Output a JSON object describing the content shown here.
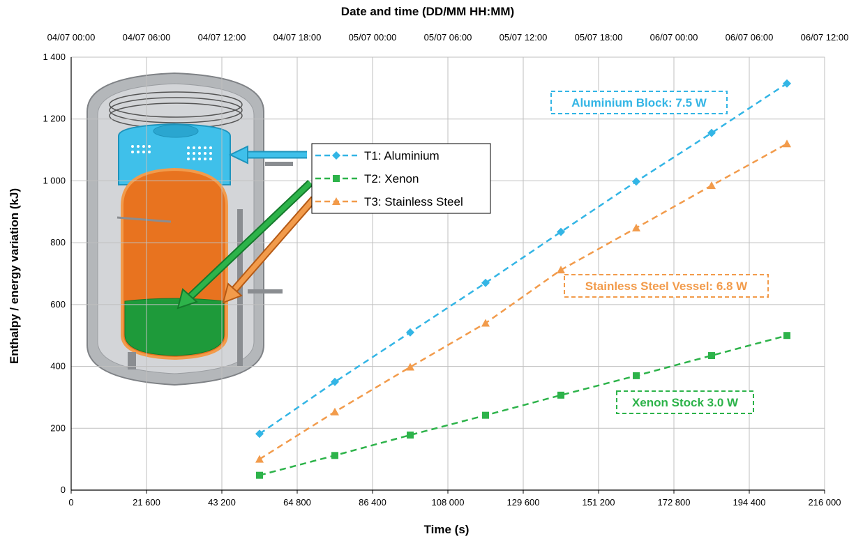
{
  "chart_data": {
    "type": "line",
    "xlabel": "Time (s)",
    "ylabel": "Enthalpy / energy variation (kJ)",
    "x2label": "Date and time (DD/MM HH:MM)",
    "xlim": [
      0,
      216000
    ],
    "ylim": [
      0,
      1400
    ],
    "x_ticks": [
      0,
      21600,
      43200,
      64800,
      86400,
      108000,
      129600,
      151200,
      172800,
      194400,
      216000
    ],
    "x_tick_labels": [
      "0",
      "21 600",
      "43 200",
      "64 800",
      "86 400",
      "108 000",
      "129 600",
      "151 200",
      "172 800",
      "194 400",
      "216 000"
    ],
    "y_ticks": [
      0,
      200,
      400,
      600,
      800,
      1000,
      1200,
      1400
    ],
    "y_tick_labels": [
      "0",
      "200",
      "400",
      "600",
      "800",
      "1 000",
      "1 200",
      "1 400"
    ],
    "x2_tick_labels": [
      "04/07 00:00",
      "04/07 06:00",
      "04/07 12:00",
      "04/07 18:00",
      "05/07 00:00",
      "05/07 06:00",
      "05/07 12:00",
      "05/07 18:00",
      "06/07 00:00",
      "06/07 06:00",
      "06/07 12:00"
    ],
    "grid": true,
    "legend_position": "center-left, over the image",
    "series": [
      {
        "name": "T1: Aluminium",
        "color": "#33b5e5",
        "marker": "diamond",
        "x": [
          54000,
          75600,
          97200,
          118800,
          140400,
          162000,
          183600,
          205200
        ],
        "y": [
          182,
          350,
          510,
          670,
          835,
          998,
          1155,
          1315
        ]
      },
      {
        "name": "T2: Xenon",
        "color": "#2db34a",
        "marker": "square",
        "x": [
          54000,
          75600,
          97200,
          118800,
          140400,
          162000,
          183600,
          205200
        ],
        "y": [
          48,
          112,
          178,
          242,
          307,
          370,
          435,
          500
        ]
      },
      {
        "name": "T3: Stainless Steel",
        "color": "#f29b4b",
        "marker": "triangle",
        "x": [
          54000,
          75600,
          97200,
          118800,
          140400,
          162000,
          183600,
          205200
        ],
        "y": [
          100,
          253,
          398,
          540,
          712,
          848,
          985,
          1120
        ]
      }
    ],
    "annotations": [
      {
        "text": "Aluminium Block: 7.5 W",
        "color": "#33b5e5"
      },
      {
        "text": "Stainless Steel Vessel: 6.8 W",
        "color": "#f29b4b"
      },
      {
        "text": "Xenon Stock 3.0 W",
        "color": "#2db34a"
      }
    ]
  }
}
